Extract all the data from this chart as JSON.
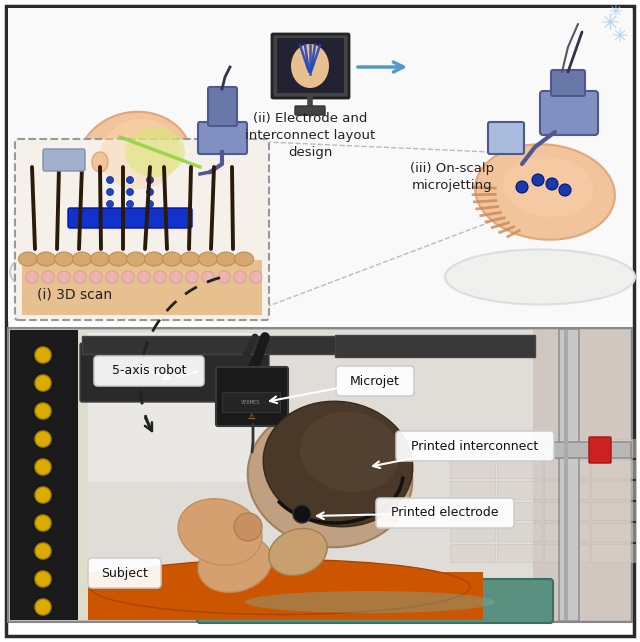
{
  "bg_color": "#ffffff",
  "border_color": "#2a2a2a",
  "fig_width": 6.4,
  "fig_height": 6.42,
  "labels": {
    "scan": "(i) 3D scan",
    "electrode": "(ii) Electrode and\ninterconnect layout\ndesign",
    "microjetting": "(iii) On-scalp\nmicrojetting"
  },
  "photo_labels": {
    "robot": "5-axis robot",
    "microjet": "Microjet",
    "interconnect": "Printed interconnect",
    "electrode": "Printed electrode",
    "subject": "Subject"
  },
  "colors": {
    "skin": "#f2c49b",
    "skin_shadow": "#e0a87a",
    "skin_light": "#fad5b0",
    "hair_dark": "#4a3728",
    "scanner_blue": "#8090c0",
    "scanner_mid": "#6878a8",
    "scanner_dark": "#505890",
    "green_laser": "#90d040",
    "blue_dot": "#1a3a99",
    "blue_ink": "#1a2ecc",
    "scalp_tan": "#d4a070",
    "robot_black": "#1c1c1c",
    "robot_dark": "#2a2a2a",
    "robot_gray": "#555555",
    "monitor_dark": "#222233",
    "monitor_gray": "#444455",
    "arrow_blue": "#5599cc",
    "inset_border": "#999999",
    "snowflake": "#99bbdd",
    "orange_shirt": "#cc5500",
    "teal_pillow": "#5a9080",
    "metal_gray": "#b0b0b0",
    "metal_light": "#d0d0d0",
    "photo_bg_left": "#3a3a3a",
    "photo_bg_center": "#c8c0b8",
    "photo_bg_right": "#d0c8c0",
    "yellow_dot": "#ddaa00",
    "white_box": "#ffffff",
    "box_border": "#cccccc"
  }
}
